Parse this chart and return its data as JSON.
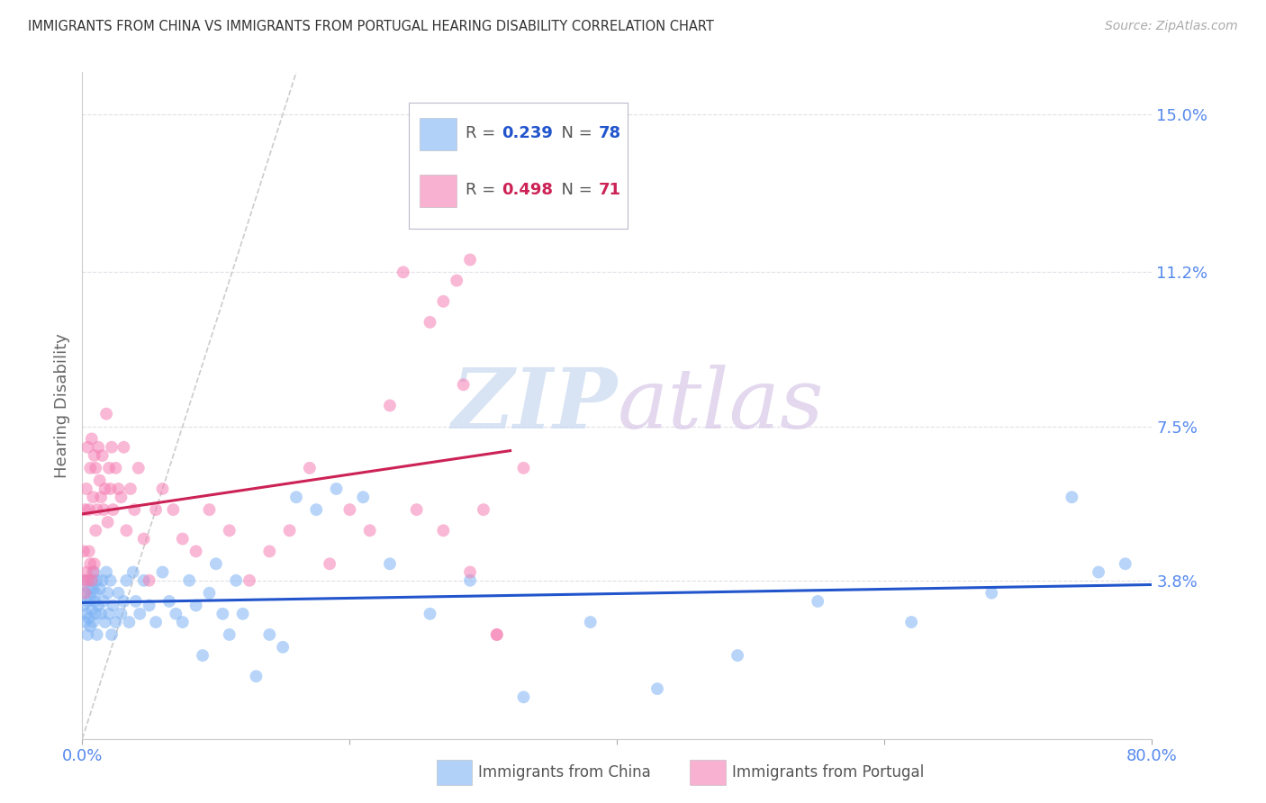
{
  "title": "IMMIGRANTS FROM CHINA VS IMMIGRANTS FROM PORTUGAL HEARING DISABILITY CORRELATION CHART",
  "source": "Source: ZipAtlas.com",
  "ylabel": "Hearing Disability",
  "yticks": [
    0.0,
    0.038,
    0.075,
    0.112,
    0.15
  ],
  "ytick_labels": [
    "",
    "3.8%",
    "7.5%",
    "11.2%",
    "15.0%"
  ],
  "xlim": [
    0.0,
    0.8
  ],
  "ylim": [
    0.0,
    0.16
  ],
  "china_R": 0.239,
  "china_N": 78,
  "portugal_R": 0.498,
  "portugal_N": 71,
  "china_color": "#7EB3F5",
  "portugal_color": "#F57EB3",
  "china_line_color": "#2255CC",
  "portugal_line_color": "#CC2255",
  "diagonal_color": "#CCCCCC",
  "title_color": "#333333",
  "axis_label_color": "#5588EE",
  "watermark_zip_color": "#C8D8F0",
  "watermark_atlas_color": "#D8C8E8",
  "background_color": "#FFFFFF",
  "china_x": [
    0.001,
    0.002,
    0.002,
    0.003,
    0.003,
    0.004,
    0.004,
    0.005,
    0.005,
    0.006,
    0.006,
    0.007,
    0.007,
    0.008,
    0.008,
    0.009,
    0.009,
    0.01,
    0.01,
    0.011,
    0.011,
    0.012,
    0.013,
    0.014,
    0.015,
    0.016,
    0.017,
    0.018,
    0.019,
    0.02,
    0.021,
    0.022,
    0.023,
    0.025,
    0.027,
    0.029,
    0.031,
    0.033,
    0.035,
    0.038,
    0.04,
    0.043,
    0.046,
    0.05,
    0.055,
    0.06,
    0.065,
    0.07,
    0.075,
    0.08,
    0.085,
    0.09,
    0.095,
    0.1,
    0.105,
    0.11,
    0.115,
    0.12,
    0.13,
    0.14,
    0.15,
    0.16,
    0.175,
    0.19,
    0.21,
    0.23,
    0.26,
    0.29,
    0.33,
    0.38,
    0.43,
    0.49,
    0.55,
    0.62,
    0.68,
    0.74,
    0.76,
    0.78
  ],
  "china_y": [
    0.032,
    0.028,
    0.035,
    0.03,
    0.038,
    0.033,
    0.025,
    0.036,
    0.029,
    0.034,
    0.027,
    0.038,
    0.031,
    0.036,
    0.028,
    0.04,
    0.033,
    0.035,
    0.03,
    0.038,
    0.025,
    0.032,
    0.036,
    0.03,
    0.038,
    0.033,
    0.028,
    0.04,
    0.035,
    0.03,
    0.038,
    0.025,
    0.032,
    0.028,
    0.035,
    0.03,
    0.033,
    0.038,
    0.028,
    0.04,
    0.033,
    0.03,
    0.038,
    0.032,
    0.028,
    0.04,
    0.033,
    0.03,
    0.028,
    0.038,
    0.032,
    0.02,
    0.035,
    0.042,
    0.03,
    0.025,
    0.038,
    0.03,
    0.015,
    0.025,
    0.022,
    0.058,
    0.055,
    0.06,
    0.058,
    0.042,
    0.03,
    0.038,
    0.01,
    0.028,
    0.012,
    0.02,
    0.033,
    0.028,
    0.035,
    0.058,
    0.04,
    0.042
  ],
  "portugal_x": [
    0.001,
    0.001,
    0.002,
    0.002,
    0.003,
    0.003,
    0.004,
    0.004,
    0.005,
    0.005,
    0.006,
    0.006,
    0.007,
    0.007,
    0.008,
    0.008,
    0.009,
    0.009,
    0.01,
    0.01,
    0.011,
    0.012,
    0.013,
    0.014,
    0.015,
    0.016,
    0.017,
    0.018,
    0.019,
    0.02,
    0.021,
    0.022,
    0.023,
    0.025,
    0.027,
    0.029,
    0.031,
    0.033,
    0.036,
    0.039,
    0.042,
    0.046,
    0.05,
    0.055,
    0.06,
    0.068,
    0.075,
    0.085,
    0.095,
    0.11,
    0.125,
    0.14,
    0.155,
    0.17,
    0.185,
    0.2,
    0.215,
    0.23,
    0.25,
    0.27,
    0.29,
    0.31,
    0.33,
    0.285,
    0.3,
    0.27,
    0.26,
    0.24,
    0.31,
    0.29,
    0.28
  ],
  "portugal_y": [
    0.038,
    0.045,
    0.035,
    0.055,
    0.04,
    0.06,
    0.038,
    0.07,
    0.045,
    0.055,
    0.042,
    0.065,
    0.038,
    0.072,
    0.04,
    0.058,
    0.068,
    0.042,
    0.065,
    0.05,
    0.055,
    0.07,
    0.062,
    0.058,
    0.068,
    0.055,
    0.06,
    0.078,
    0.052,
    0.065,
    0.06,
    0.07,
    0.055,
    0.065,
    0.06,
    0.058,
    0.07,
    0.05,
    0.06,
    0.055,
    0.065,
    0.048,
    0.038,
    0.055,
    0.06,
    0.055,
    0.048,
    0.045,
    0.055,
    0.05,
    0.038,
    0.045,
    0.05,
    0.065,
    0.042,
    0.055,
    0.05,
    0.08,
    0.055,
    0.05,
    0.04,
    0.025,
    0.065,
    0.085,
    0.055,
    0.105,
    0.1,
    0.112,
    0.025,
    0.115,
    0.11
  ],
  "portugal_line_xrange": [
    0.0,
    0.32
  ],
  "china_line_xrange": [
    0.0,
    0.8
  ]
}
